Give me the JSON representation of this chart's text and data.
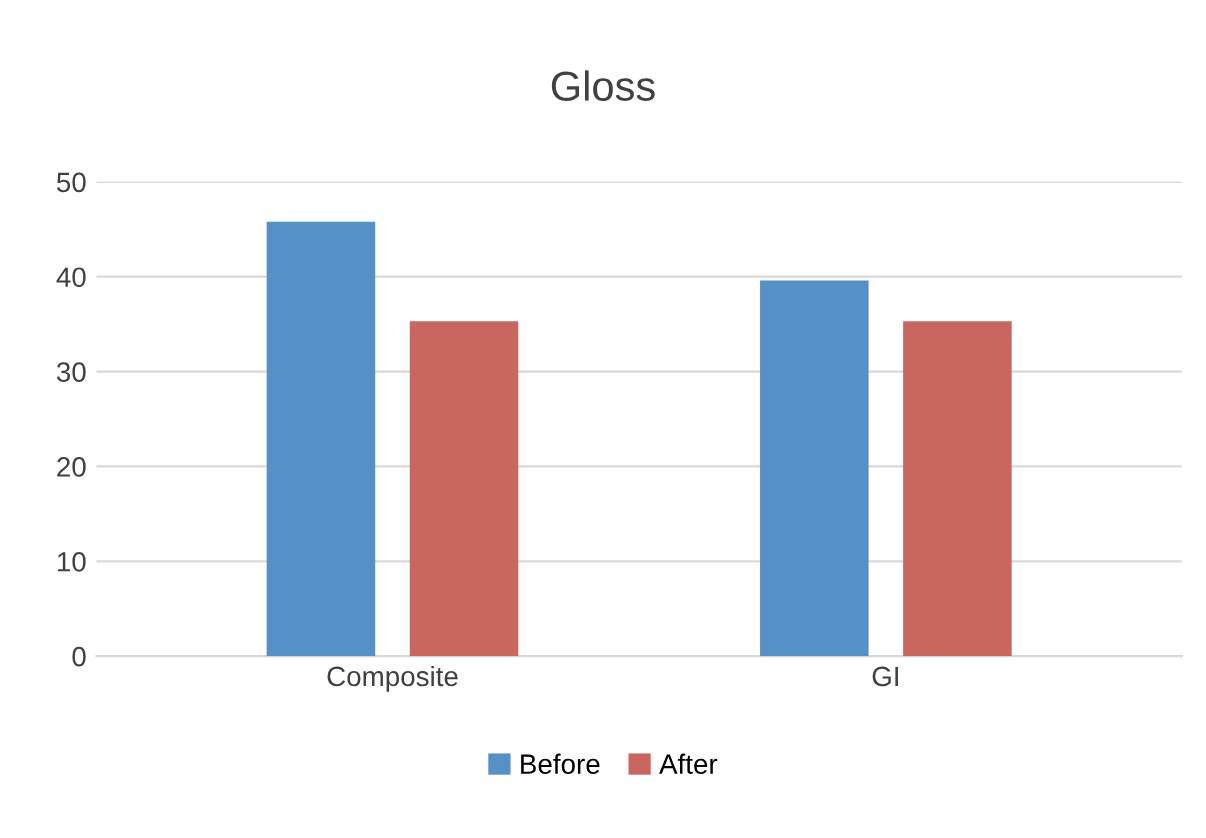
{
  "chart_data": {
    "type": "bar",
    "title": "Gloss",
    "categories": [
      "Composite",
      "GI"
    ],
    "series": [
      {
        "name": "Before",
        "color": "#5590c7",
        "values": [
          45.8,
          39.6
        ]
      },
      {
        "name": "After",
        "color": "#c8665f",
        "values": [
          35.3,
          35.3
        ]
      }
    ],
    "ylim": [
      0,
      50
    ],
    "yticks": [
      0,
      10,
      20,
      30,
      40,
      50
    ],
    "grid": "y",
    "legend": "bottom"
  }
}
